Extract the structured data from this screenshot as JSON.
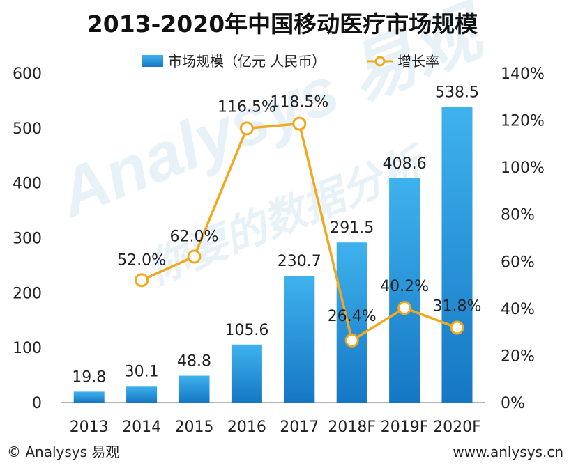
{
  "chart_data": {
    "type": "bar+line",
    "title": "2013-2020年中国移动医疗市场规模",
    "categories": [
      "2013",
      "2014",
      "2015",
      "2016",
      "2017",
      "2018F",
      "2019F",
      "2020F"
    ],
    "series": [
      {
        "name": "市场规模（亿元 人民币）",
        "type": "bar",
        "axis": "left",
        "values": [
          19.8,
          30.1,
          48.8,
          105.6,
          230.7,
          291.5,
          408.6,
          538.5
        ],
        "labels": [
          "19.8",
          "30.1",
          "48.8",
          "105.6",
          "230.7",
          "291.5",
          "408.6",
          "538.5"
        ]
      },
      {
        "name": "增长率",
        "type": "line",
        "axis": "right",
        "values": [
          null,
          52.0,
          62.0,
          116.5,
          118.5,
          26.4,
          40.2,
          31.8
        ],
        "labels": [
          "",
          "52.0%",
          "62.0%",
          "116.5%",
          "118.5%",
          "26.4%",
          "40.2%",
          "31.8%"
        ]
      }
    ],
    "y_left": {
      "min": 0,
      "max": 600,
      "ticks": [
        "0",
        "100",
        "200",
        "300",
        "400",
        "500",
        "600"
      ]
    },
    "y_right": {
      "min": 0,
      "max": 140,
      "ticks": [
        "0%",
        "20%",
        "40%",
        "60%",
        "80%",
        "100%",
        "120%",
        "140%"
      ]
    },
    "legend": "top-center",
    "grid": false
  },
  "footer": {
    "left": "© Analysys 易观",
    "right": "www.anlysys.cn"
  },
  "watermark": {
    "line1": "Analysys 易观",
    "line2": "你要的数据分析"
  },
  "colors": {
    "bar_top": "#3fb2ee",
    "bar_bottom": "#1577c4",
    "line": "#f2a81d",
    "marker_fill": "#ffffff"
  }
}
